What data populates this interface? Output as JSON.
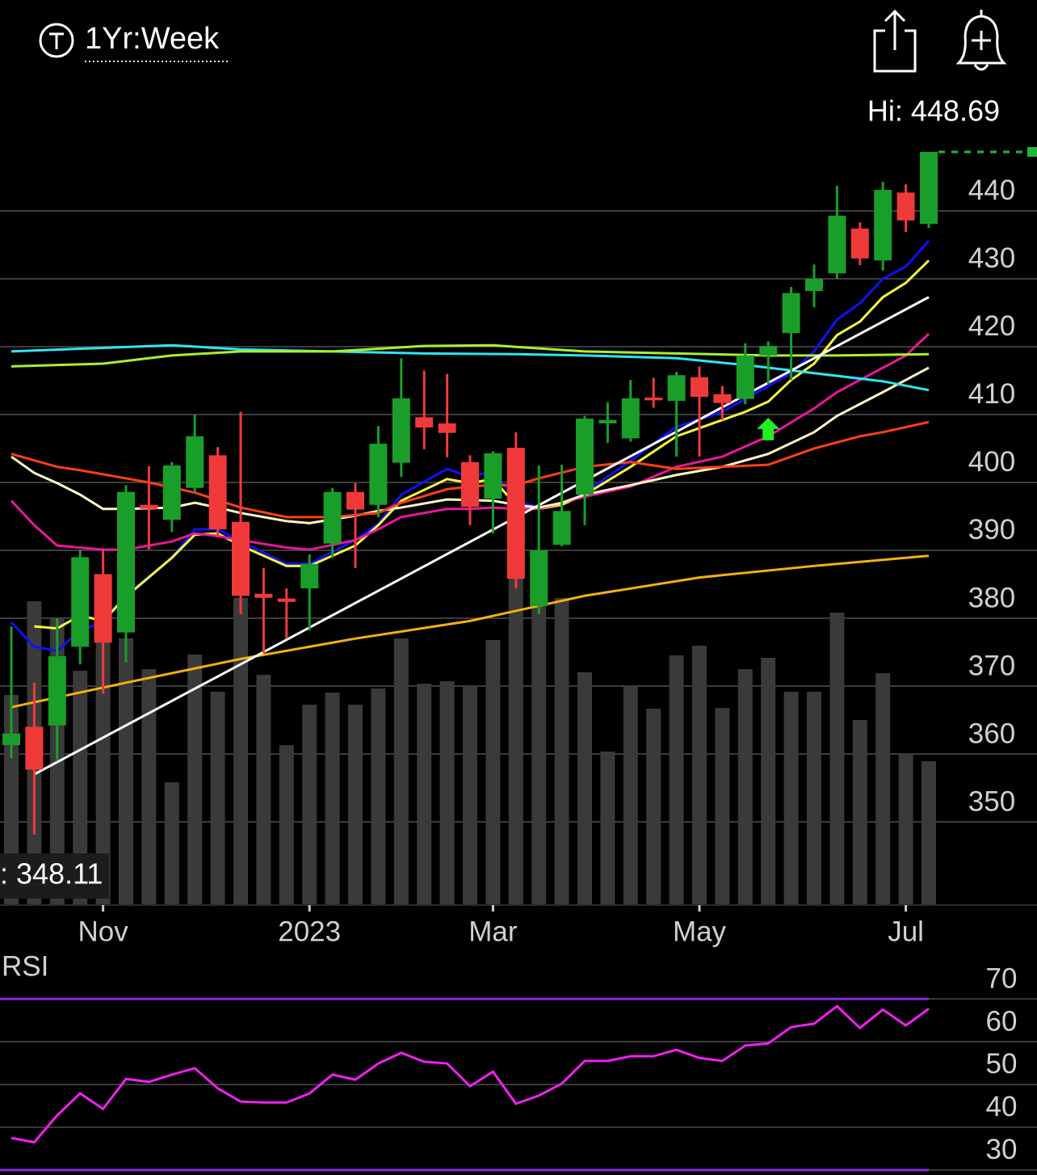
{
  "header": {
    "timeframe": "1Yr:Week"
  },
  "chart_data": [
    {
      "type": "candlestick",
      "categories": [
        null,
        null,
        null,
        null,
        "Nov",
        null,
        null,
        null,
        null,
        null,
        null,
        null,
        null,
        "2023",
        null,
        null,
        null,
        null,
        null,
        null,
        null,
        "Mar",
        null,
        null,
        null,
        null,
        null,
        null,
        null,
        null,
        "May",
        null,
        null,
        null,
        null,
        null,
        null,
        null,
        null,
        "Jul",
        null
      ],
      "open": [
        361.3,
        364.0,
        364.2,
        375.8,
        386.5,
        377.9,
        396.7,
        394.5,
        399.2,
        404.0,
        394.2,
        383.6,
        382.9,
        384.4,
        391.0,
        398.6,
        396.7,
        402.9,
        409.6,
        408.7,
        403.0,
        397.6,
        405.1,
        381.8,
        390.8,
        398.2,
        408.7,
        406.5,
        412.5,
        412.0,
        415.5,
        413.0,
        412.3,
        418.7,
        422.0,
        428.2,
        430.8,
        437.4,
        432.7,
        442.7,
        438.1
      ],
      "high": [
        378.8,
        370.5,
        380.0,
        390.1,
        390.1,
        399.6,
        402.4,
        403.0,
        410.0,
        405.2,
        410.4,
        387.4,
        384.4,
        389.4,
        399.2,
        399.9,
        408.3,
        418.3,
        416.5,
        416.0,
        404.0,
        404.6,
        407.4,
        402.5,
        402.6,
        409.8,
        411.8,
        415.1,
        415.4,
        416.3,
        417.1,
        414.2,
        420.5,
        420.8,
        428.8,
        432.1,
        443.7,
        438.3,
        444.3,
        443.9,
        448.69
      ],
      "low": [
        359.4,
        348.11,
        359.2,
        373.2,
        368.9,
        373.5,
        390.1,
        392.7,
        398.5,
        391.9,
        380.6,
        374.9,
        377.0,
        378.2,
        388.9,
        387.4,
        394.9,
        400.8,
        404.9,
        403.7,
        393.7,
        392.5,
        384.4,
        380.6,
        390.6,
        393.7,
        405.8,
        406.0,
        411.0,
        403.8,
        403.8,
        409.2,
        411.5,
        414.5,
        415.1,
        425.8,
        430.0,
        432.0,
        431.2,
        436.9,
        437.5
      ],
      "close": [
        363.0,
        357.7,
        374.4,
        389.0,
        376.4,
        398.6,
        396.1,
        402.5,
        406.8,
        393.1,
        383.3,
        383.0,
        382.4,
        388.0,
        398.6,
        396.0,
        405.7,
        412.4,
        408.1,
        407.3,
        396.4,
        404.3,
        385.8,
        390.0,
        395.8,
        409.4,
        409.2,
        412.4,
        412.1,
        415.8,
        412.6,
        411.7,
        418.7,
        420.1,
        427.9,
        430.0,
        439.3,
        433.0,
        443.1,
        438.6,
        448.69
      ],
      "volume": [
        260,
        376,
        354,
        290,
        330,
        330,
        292,
        152,
        310,
        264,
        380,
        285,
        198,
        248,
        263,
        248,
        268,
        330,
        274,
        277,
        272,
        328,
        420,
        420,
        380,
        288,
        190,
        272,
        243,
        309,
        321,
        244,
        292,
        306,
        264,
        264,
        362,
        229,
        287,
        187,
        178
      ],
      "up_color": "#1a9e2a",
      "down_color": "#f03a3a",
      "volume_color": "#3a3a3a",
      "ylim": [
        337.74,
        449.64
      ],
      "yticks": [
        350,
        360,
        370,
        380,
        390,
        400,
        410,
        420,
        430,
        440
      ],
      "grid": true,
      "hi_label": "Hi: 448.69",
      "lo_label": ": 348.11",
      "overlays": [
        {
          "color": "#1010ff",
          "x": [
            0,
            1,
            2,
            3,
            4,
            5,
            7,
            8,
            9,
            10,
            12,
            13,
            15,
            16,
            17,
            19,
            20,
            21,
            22,
            23,
            24,
            25,
            27,
            29,
            31,
            33,
            34,
            35,
            36,
            37,
            38,
            39,
            40
          ],
          "values": [
            379.4,
            375.8,
            375.2,
            378.2,
            379.4,
            383.0,
            388.9,
            393.1,
            393.1,
            391.3,
            388.0,
            388.0,
            391.5,
            393.9,
            398.2,
            402.0,
            400.8,
            401.7,
            397.3,
            396.3,
            396.7,
            398.5,
            403.2,
            408.2,
            410.4,
            414.2,
            416.1,
            419.3,
            424.0,
            426.4,
            430.0,
            431.8,
            435.6
          ]
        },
        {
          "color": "#f5f542",
          "x": [
            1,
            2,
            3,
            4,
            5,
            7,
            8,
            9,
            10,
            12,
            13,
            15,
            16,
            17,
            19,
            20,
            21,
            22,
            23,
            24,
            25,
            27,
            29,
            31,
            32,
            33,
            34,
            35,
            36,
            37,
            38,
            39,
            40
          ],
          "values": [
            378.8,
            378.5,
            380.4,
            379.6,
            383.2,
            388.9,
            392.3,
            392.5,
            390.7,
            387.7,
            387.7,
            390.7,
            393.7,
            397.3,
            400.5,
            399.9,
            400.5,
            396.7,
            396.1,
            396.7,
            398.2,
            402.3,
            406.8,
            409.2,
            410.4,
            411.9,
            415.1,
            417.5,
            421.7,
            423.7,
            427.3,
            429.4,
            432.7
          ]
        },
        {
          "color": "#e8179a",
          "x": [
            0,
            1,
            2,
            3,
            4,
            5,
            7,
            8,
            9,
            10,
            12,
            13,
            15,
            16,
            17,
            19,
            20,
            21,
            22,
            23,
            24,
            25,
            27,
            29,
            31,
            33,
            35,
            36,
            38,
            39,
            40
          ],
          "values": [
            397.3,
            393.7,
            390.7,
            390.4,
            390.1,
            390.1,
            391.3,
            392.5,
            392.1,
            391.5,
            390.4,
            390.1,
            391.5,
            393.1,
            394.9,
            396.1,
            396.1,
            396.3,
            396.1,
            396.1,
            397.0,
            397.9,
            399.4,
            402.3,
            403.8,
            406.8,
            410.9,
            413.3,
            416.9,
            418.7,
            421.9
          ]
        },
        {
          "color": "#fff7c0",
          "x": [
            0,
            1,
            2,
            3,
            4,
            5,
            7,
            8,
            9,
            10,
            12,
            13,
            15,
            16,
            17,
            19,
            21,
            22,
            23,
            24,
            25,
            27,
            29,
            31,
            33,
            35,
            36,
            38,
            39,
            40
          ],
          "values": [
            403.8,
            401.4,
            399.9,
            398.2,
            396.1,
            396.1,
            396.3,
            397.0,
            396.3,
            395.5,
            394.3,
            394.0,
            395.1,
            395.8,
            396.3,
            397.5,
            397.3,
            396.7,
            396.3,
            397.0,
            398.2,
            399.6,
            401.1,
            402.3,
            404.2,
            407.4,
            409.8,
            413.3,
            415.1,
            416.9
          ]
        },
        {
          "color": "#ff4010",
          "x": [
            0,
            2,
            3,
            5,
            6,
            8,
            10,
            12,
            14,
            16,
            17,
            19,
            20,
            21,
            22,
            23,
            25,
            27,
            29,
            31,
            33,
            35,
            37,
            38,
            40
          ],
          "values": [
            404.2,
            402.3,
            401.8,
            400.6,
            400.0,
            398.5,
            396.3,
            394.9,
            394.9,
            395.5,
            397.0,
            399.0,
            399.4,
            399.6,
            399.6,
            400.6,
            402.3,
            403.0,
            402.0,
            402.3,
            402.6,
            405.0,
            406.8,
            407.4,
            408.9
          ]
        },
        {
          "color": "#2ee6f0",
          "x": [
            0,
            3,
            7,
            10,
            14,
            18,
            22,
            25,
            29,
            32,
            35,
            38,
            40
          ],
          "values": [
            419.3,
            419.7,
            420.2,
            419.6,
            419.3,
            419.0,
            418.9,
            418.7,
            418.3,
            417.3,
            416.1,
            414.9,
            413.6
          ]
        },
        {
          "color": "#a8f030",
          "x": [
            0,
            4,
            7,
            10,
            14,
            18,
            21,
            25,
            29,
            33,
            36,
            40
          ],
          "values": [
            417.1,
            417.5,
            418.7,
            419.3,
            419.3,
            420.1,
            420.2,
            419.3,
            419.0,
            418.7,
            418.7,
            418.9
          ]
        },
        {
          "color": "#f5b010",
          "x": [
            0,
            5,
            10,
            15,
            20,
            25,
            30,
            35,
            40
          ],
          "values": [
            366.9,
            370.5,
            374.0,
            377.0,
            379.6,
            383.3,
            386.0,
            387.7,
            389.2
          ]
        },
        {
          "color": "#ffffff",
          "x": [
            1,
            40
          ],
          "values": [
            357.0,
            427.3
          ]
        }
      ],
      "signals": [
        {
          "x": 33,
          "value": 406.2,
          "color": "#22ee22"
        }
      ]
    },
    {
      "type": "line",
      "title": "RSI",
      "series": [
        {
          "color": "#f020f0",
          "values": [
            37.5,
            36.5,
            42.8,
            47.9,
            44.3,
            51.3,
            50.6,
            52.3,
            53.8,
            49.1,
            46.0,
            45.8,
            45.8,
            47.9,
            52.3,
            51.1,
            54.9,
            57.4,
            55.3,
            54.9,
            49.6,
            53.0,
            45.5,
            47.4,
            50.2,
            55.5,
            55.5,
            56.6,
            56.6,
            58.1,
            56.2,
            55.5,
            59.1,
            59.6,
            63.4,
            64.2,
            68.3,
            63.2,
            67.5,
            63.8,
            67.7
          ]
        }
      ],
      "ylim": [
        29.6,
        78.7
      ],
      "yticks": [
        30,
        40,
        50,
        60,
        70
      ],
      "reference_lines": [
        70,
        30
      ],
      "reference_color": "#8a2be2"
    }
  ]
}
